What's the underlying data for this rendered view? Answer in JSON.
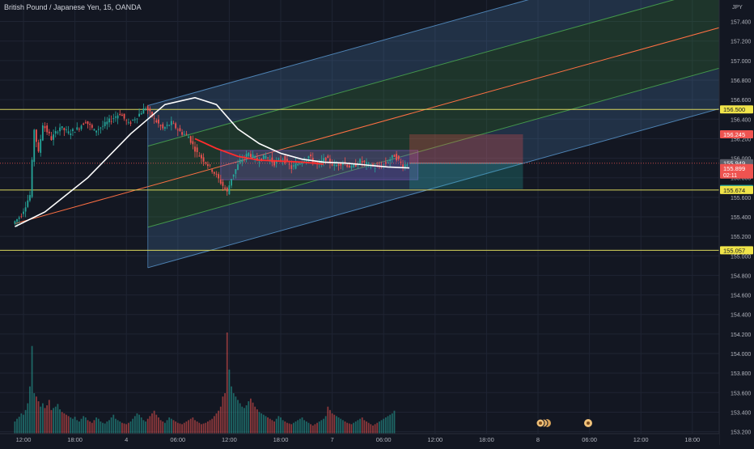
{
  "symbol": {
    "title": "British Pound / Japanese Yen, 15, OANDA",
    "currency": "JPY"
  },
  "colors": {
    "background": "#131722",
    "grid": "#1f2433",
    "text": "#b2b5be",
    "bull": "#26a69a",
    "bear": "#ef5350",
    "level_line": "#d9d65c",
    "channel_blue": "#5b9bd5",
    "channel_green": "#4caf50",
    "median_orange": "#ff7043",
    "ma_white": "#ffffff",
    "ma_red": "#ff2d2d",
    "zone_purple": "#7e57c2"
  },
  "chart_data": {
    "type": "candlestick",
    "interval": "15",
    "price_axis": {
      "ylim": [
        153.18,
        157.62
      ],
      "ticks": [
        "157.400",
        "157.200",
        "157.000",
        "156.800",
        "156.600",
        "156.400",
        "156.200",
        "156.000",
        "155.800",
        "155.600",
        "155.400",
        "155.200",
        "155.000",
        "154.800",
        "154.600",
        "154.400",
        "154.200",
        "154.000",
        "153.800",
        "153.600",
        "153.400",
        "153.200"
      ]
    },
    "time_axis": {
      "ticks": [
        {
          "label": "12:00",
          "bar": 0
        },
        {
          "label": "18:00",
          "bar": 24
        },
        {
          "label": "4",
          "bar": 48
        },
        {
          "label": "06:00",
          "bar": 72
        },
        {
          "label": "12:00",
          "bar": 96
        },
        {
          "label": "18:00",
          "bar": 120
        },
        {
          "label": "7",
          "bar": 144
        },
        {
          "label": "06:00",
          "bar": 168
        },
        {
          "label": "12:00",
          "bar": 192
        },
        {
          "label": "18:00",
          "bar": 216
        },
        {
          "label": "8",
          "bar": 240
        },
        {
          "label": "06:00",
          "bar": 264
        },
        {
          "label": "12:00",
          "bar": 288
        },
        {
          "label": "18:00",
          "bar": 312
        }
      ]
    },
    "price_path": [
      [
        -4,
        155.33
      ],
      [
        0,
        155.42
      ],
      [
        4,
        155.62
      ],
      [
        6,
        156.3
      ],
      [
        8,
        156.05
      ],
      [
        10,
        156.35
      ],
      [
        14,
        156.2
      ],
      [
        18,
        156.32
      ],
      [
        22,
        156.26
      ],
      [
        26,
        156.3
      ],
      [
        30,
        156.38
      ],
      [
        34,
        156.28
      ],
      [
        38,
        156.33
      ],
      [
        42,
        156.4
      ],
      [
        46,
        156.46
      ],
      [
        50,
        156.35
      ],
      [
        54,
        156.43
      ],
      [
        58,
        156.52
      ],
      [
        62,
        156.4
      ],
      [
        66,
        156.3
      ],
      [
        70,
        156.36
      ],
      [
        74,
        156.27
      ],
      [
        78,
        156.22
      ],
      [
        82,
        156.05
      ],
      [
        86,
        155.96
      ],
      [
        90,
        155.85
      ],
      [
        94,
        155.72
      ],
      [
        96,
        155.65
      ],
      [
        98,
        155.8
      ],
      [
        102,
        155.97
      ],
      [
        106,
        156.05
      ],
      [
        110,
        155.98
      ],
      [
        114,
        156.02
      ],
      [
        118,
        155.95
      ],
      [
        122,
        156.0
      ],
      [
        126,
        155.9
      ],
      [
        130,
        155.96
      ],
      [
        134,
        156.02
      ],
      [
        138,
        155.93
      ],
      [
        142,
        156.0
      ],
      [
        146,
        155.92
      ],
      [
        150,
        155.96
      ],
      [
        154,
        155.9
      ],
      [
        158,
        155.97
      ],
      [
        162,
        155.93
      ],
      [
        166,
        155.9
      ],
      [
        170,
        155.95
      ],
      [
        174,
        156.03
      ],
      [
        178,
        155.92
      ],
      [
        180,
        155.949
      ]
    ],
    "volume": [
      18,
      22,
      25,
      30,
      28,
      35,
      45,
      70,
      130,
      60,
      55,
      48,
      40,
      45,
      38,
      42,
      50,
      35,
      38,
      40,
      44,
      36,
      32,
      30,
      28,
      26,
      24,
      22,
      25,
      20,
      18,
      22,
      26,
      24,
      20,
      18,
      16,
      20,
      24,
      22,
      18,
      16,
      15,
      18,
      20,
      24,
      28,
      22,
      20,
      18,
      16,
      15,
      14,
      16,
      18,
      22,
      26,
      30,
      28,
      24,
      20,
      18,
      22,
      26,
      30,
      34,
      28,
      24,
      20,
      18,
      16,
      20,
      24,
      22,
      20,
      18,
      16,
      15,
      14,
      16,
      18,
      20,
      22,
      24,
      20,
      18,
      16,
      14,
      15,
      16,
      18,
      20,
      22,
      26,
      30,
      34,
      40,
      55,
      60,
      150,
      95,
      70,
      60,
      55,
      50,
      45,
      40,
      38,
      42,
      48,
      52,
      46,
      40,
      36,
      32,
      30,
      28,
      26,
      24,
      22,
      20,
      18,
      22,
      26,
      24,
      20,
      18,
      16,
      15,
      14,
      16,
      18,
      20,
      22,
      24,
      20,
      18,
      16,
      14,
      12,
      14,
      16,
      18,
      20,
      22,
      26,
      40,
      35,
      30,
      28,
      26,
      24,
      22,
      20,
      18,
      16,
      15,
      14,
      16,
      18,
      20,
      22,
      24,
      20,
      18,
      16,
      14,
      12,
      14,
      16,
      18,
      20,
      22,
      24,
      26,
      28,
      30,
      34
    ],
    "volume_ylim": [
      0,
      180
    ],
    "levels": [
      {
        "price": 156.5,
        "label": "156.500"
      },
      {
        "price": 155.674,
        "label": "155.674"
      },
      {
        "price": 155.057,
        "label": "155.057"
      }
    ],
    "price_tags": [
      {
        "price": 156.245,
        "label": "156.245",
        "color": "#ef5350"
      },
      {
        "price": 155.949,
        "label": "155.949",
        "color": "#5d606b"
      },
      {
        "price": 155.899,
        "label": "155.899",
        "color": "#ef5350",
        "sub": "02:11"
      },
      {
        "price": 155.685,
        "label": "155.685",
        "color": "#26a69a"
      },
      {
        "price": 155.674,
        "label": "155.674",
        "color": "#f0e44a"
      },
      {
        "price": 156.5,
        "label": "156.500",
        "color": "#f0e44a"
      },
      {
        "price": 155.057,
        "label": "155.057",
        "color": "#f0e44a"
      }
    ],
    "pitchfork": {
      "center_start": [
        -4,
        155.33
      ],
      "center_end": [
        330,
        157.37
      ],
      "upper_offset": 0.83,
      "inner_offset": 0.415
    },
    "ma_white": [
      [
        -4,
        155.3
      ],
      [
        10,
        155.45
      ],
      [
        30,
        155.8
      ],
      [
        50,
        156.25
      ],
      [
        66,
        156.55
      ],
      [
        80,
        156.62
      ],
      [
        90,
        156.55
      ],
      [
        100,
        156.3
      ],
      [
        110,
        156.15
      ],
      [
        120,
        156.05
      ],
      [
        130,
        155.99
      ],
      [
        140,
        155.96
      ],
      [
        150,
        155.95
      ],
      [
        160,
        155.93
      ],
      [
        170,
        155.91
      ],
      [
        180,
        155.9
      ]
    ],
    "ma_red": [
      [
        80,
        156.2
      ],
      [
        90,
        156.1
      ],
      [
        100,
        156.02
      ],
      [
        110,
        155.98
      ],
      [
        120,
        155.97
      ],
      [
        130,
        155.96
      ],
      [
        140,
        155.94
      ]
    ],
    "zone": {
      "bar_start": 92,
      "bar_end": 184,
      "price_top": 156.08,
      "price_bottom": 155.78
    },
    "position": {
      "bar_start": 180,
      "bar_end": 233,
      "entry": 155.949,
      "stop": 156.245,
      "target": 155.685
    }
  }
}
